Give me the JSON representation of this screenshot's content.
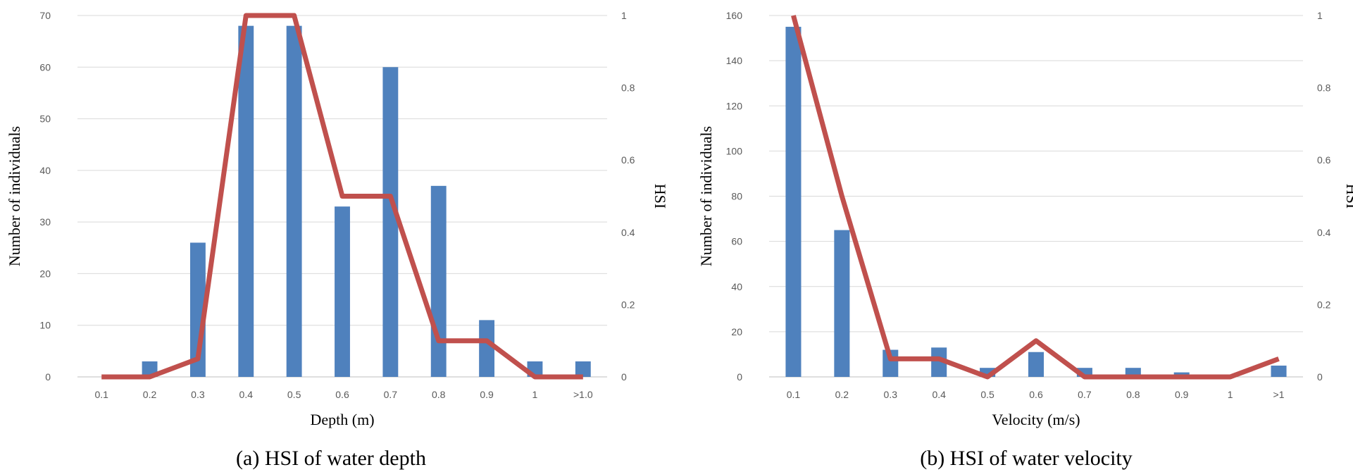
{
  "chart_data": [
    {
      "type": "bar",
      "caption": "(a) HSI of water depth",
      "xlabel": "Depth (m)",
      "ylabel": "Number of individuals",
      "y2label": "HSI",
      "categories": [
        "0.1",
        "0.2",
        "0.3",
        "0.4",
        "0.5",
        "0.6",
        "0.7",
        "0.8",
        "0.9",
        "1",
        ">1.0"
      ],
      "ylim": [
        0,
        70
      ],
      "yticks": [
        0,
        10,
        20,
        30,
        40,
        50,
        60,
        70
      ],
      "y2lim": [
        0,
        1
      ],
      "y2ticks": [
        "0",
        "0.2",
        "0.4",
        "0.6",
        "0.8",
        "1"
      ],
      "grid": true,
      "series": [
        {
          "type": "bar",
          "axis": "left",
          "color": "#4f81bd",
          "values": [
            0,
            3,
            26,
            68,
            68,
            33,
            60,
            37,
            11,
            3,
            3
          ]
        },
        {
          "type": "line",
          "axis": "right",
          "color": "#c0504d",
          "values": [
            0,
            0,
            0.05,
            1.0,
            1.0,
            0.5,
            0.5,
            0.1,
            0.1,
            0,
            0
          ]
        }
      ]
    },
    {
      "type": "bar",
      "caption": "(b) HSI of water velocity",
      "xlabel": "Velocity (m/s)",
      "ylabel": "Number of individuals",
      "y2label": "HSI",
      "categories": [
        "0.1",
        "0.2",
        "0.3",
        "0.4",
        "0.5",
        "0.6",
        "0.7",
        "0.8",
        "0.9",
        "1",
        ">1"
      ],
      "ylim": [
        0,
        160
      ],
      "yticks": [
        0,
        20,
        40,
        60,
        80,
        100,
        120,
        140,
        160
      ],
      "y2lim": [
        0,
        1
      ],
      "y2ticks": [
        "0",
        "0.2",
        "0.4",
        "0.6",
        "0.8",
        "1"
      ],
      "grid": true,
      "series": [
        {
          "type": "bar",
          "axis": "left",
          "color": "#4f81bd",
          "values": [
            155,
            65,
            12,
            13,
            4,
            11,
            4,
            4,
            2,
            0,
            5
          ]
        },
        {
          "type": "line",
          "axis": "right",
          "color": "#c0504d",
          "values": [
            1.0,
            0.5,
            0.05,
            0.05,
            0,
            0.1,
            0,
            0,
            0,
            0,
            0.05
          ]
        }
      ]
    }
  ]
}
